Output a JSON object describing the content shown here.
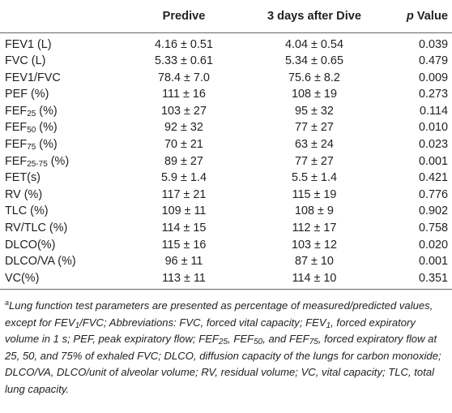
{
  "header": {
    "col1": "Predive",
    "col2": "3 days after Dive",
    "col3_italic": "p",
    "col3_rest": " Value"
  },
  "rows": [
    {
      "label": "FEV1 (L)",
      "sub": "",
      "suffix": "",
      "predive": "4.16 ± 0.51",
      "after": "4.04 ± 0.54",
      "p": "0.039"
    },
    {
      "label": "FVC (L)",
      "sub": "",
      "suffix": "",
      "predive": "5.33 ± 0.61",
      "after": "5.34 ± 0.65",
      "p": "0.479"
    },
    {
      "label": "FEV1/FVC",
      "sub": "",
      "suffix": "",
      "predive": "78.4 ± 7.0",
      "after": "75.6 ± 8.2",
      "p": "0.009"
    },
    {
      "label": "PEF (%)",
      "sub": "",
      "suffix": "",
      "predive": "111 ± 16",
      "after": "108 ± 19",
      "p": "0.273"
    },
    {
      "label": "FEF",
      "sub": "25",
      "suffix": " (%)",
      "predive": "103 ± 27",
      "after": "95 ± 32",
      "p": "0.114"
    },
    {
      "label": "FEF",
      "sub": "50",
      "suffix": " (%)",
      "predive": "92 ± 32",
      "after": "77 ± 27",
      "p": "0.010"
    },
    {
      "label": "FEF",
      "sub": "75",
      "suffix": " (%)",
      "predive": "70 ± 21",
      "after": "63 ± 24",
      "p": "0.023"
    },
    {
      "label": "FEF",
      "sub": "25-75",
      "suffix": " (%)",
      "predive": "89 ± 27",
      "after": "77 ± 27",
      "p": "0.001"
    },
    {
      "label": "FET(s)",
      "sub": "",
      "suffix": "",
      "predive": "5.9 ± 1.4",
      "after": "5.5 ± 1.4",
      "p": "0.421"
    },
    {
      "label": "RV (%)",
      "sub": "",
      "suffix": "",
      "predive": "117 ± 21",
      "after": "115 ± 19",
      "p": "0.776"
    },
    {
      "label": "TLC (%)",
      "sub": "",
      "suffix": "",
      "predive": "109 ± 11",
      "after": "108 ± 9",
      "p": "0.902"
    },
    {
      "label": "RV/TLC (%)",
      "sub": "",
      "suffix": "",
      "predive": "114 ± 15",
      "after": "112 ± 17",
      "p": "0.758"
    },
    {
      "label": "DLCO(%)",
      "sub": "",
      "suffix": "",
      "predive": "115 ± 16",
      "after": "103 ± 12",
      "p": "0.020"
    },
    {
      "label": "DLCO/VA (%)",
      "sub": "",
      "suffix": "",
      "predive": "96 ± 11",
      "after": "87 ± 10",
      "p": "0.001"
    },
    {
      "label": "VC(%)",
      "sub": "",
      "suffix": "",
      "predive": "113 ± 11",
      "after": "114 ± 10",
      "p": "0.351"
    }
  ],
  "footnote": {
    "marker": "a",
    "t1": "Lung function test parameters are presented as percentage of measured/predicted values, except for FEV",
    "s1": "1",
    "t2": "/FVC; Abbreviations: FVC, forced vital capacity; FEV",
    "s2": "1",
    "t3": ", forced expiratory volume in 1 s; PEF, peak expiratory flow; FEF",
    "s3": "25",
    "t4": ", FEF",
    "s4": "50",
    "t5": ", and FEF",
    "s5": "75",
    "t6": ", forced expiratory flow at 25, 50, and 75% of exhaled FVC; DLCO, diffusion capacity of the lungs for carbon monoxide; DLCO/VA, DLCO/unit of alveolar volume; RV, residual volume; VC, vital capacity; TLC, total lung capacity."
  }
}
